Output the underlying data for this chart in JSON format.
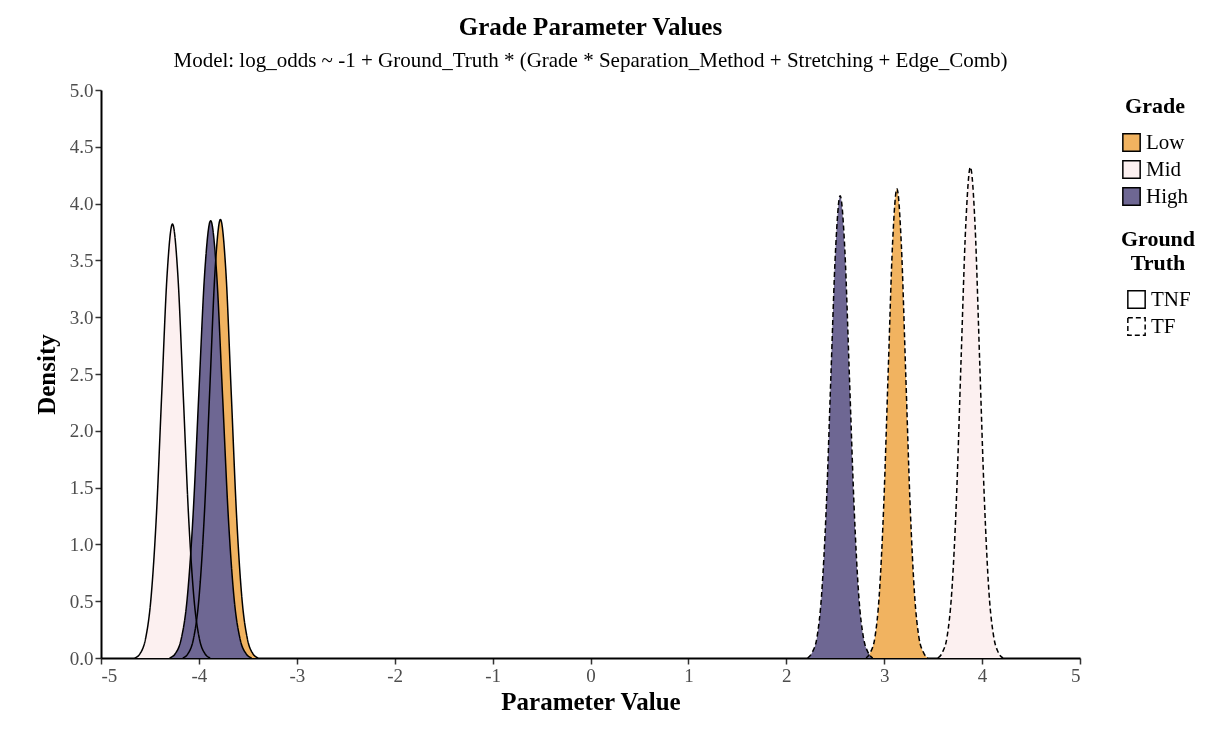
{
  "chart_data": {
    "type": "area",
    "title": "Grade Parameter Values",
    "subtitle": "Model: log_odds ~ -1 + Ground_Truth * (Grade * Separation_Method + Stretching + Edge_Comb)",
    "xlabel": "Parameter Value",
    "ylabel": "Density",
    "legend_title": [
      "Grade",
      "Ground Truth"
    ],
    "legend": "right",
    "grid": false,
    "xlim": [
      -5,
      5
    ],
    "xticks": [
      -5,
      -4,
      -3,
      -2,
      -1,
      0,
      1,
      2,
      3,
      4,
      5
    ],
    "ylim": [
      0,
      5
    ],
    "yticks": [
      {
        "value": 0,
        "label": "0.0"
      },
      {
        "value": 0.5,
        "label": "0.5"
      },
      {
        "value": 1,
        "label": "1.0"
      },
      {
        "value": 1.5,
        "label": "1.5"
      },
      {
        "value": 2,
        "label": "2.0"
      },
      {
        "value": 2.5,
        "label": "2.5"
      },
      {
        "value": 3,
        "label": "3.0"
      },
      {
        "value": 3.5,
        "label": "3.5"
      },
      {
        "value": 4,
        "label": "4.0"
      },
      {
        "value": 4.5,
        "label": "4.5"
      },
      {
        "value": 5,
        "label": "5.0"
      }
    ],
    "series": [
      {
        "name": "Low",
        "color": "#f1b360",
        "line_style": "solid",
        "x": [
          -4.165,
          -4.11,
          -4.055,
          -4.0,
          -3.945,
          -3.89,
          -3.835,
          -3.78,
          -3.725,
          -3.67,
          -3.615,
          -3.56,
          -3.505,
          -3.45,
          -3.395
        ],
        "values": [
          0,
          0.04,
          0.17,
          0.52,
          1.25,
          2.34,
          3.41,
          3.86,
          3.41,
          2.34,
          1.25,
          0.52,
          0.17,
          0.04,
          0
        ]
      },
      {
        "name": "Mid",
        "color": "#fcf0f0",
        "line_style": "solid",
        "x": [
          -4.655,
          -4.6,
          -4.545,
          -4.49,
          -4.435,
          -4.38,
          -4.325,
          -4.27,
          -4.215,
          -4.16,
          -4.105,
          -4.05,
          -3.995,
          -3.94,
          -3.885
        ],
        "values": [
          0,
          0.04,
          0.17,
          0.52,
          1.24,
          2.32,
          3.37,
          3.82,
          3.37,
          2.32,
          1.24,
          0.52,
          0.17,
          0.04,
          0
        ]
      },
      {
        "name": "High",
        "color": "#6e6793",
        "line_style": "solid",
        "x": [
          -4.3,
          -4.24,
          -4.18,
          -4.12,
          -4.06,
          -4.0,
          -3.94,
          -3.88,
          -3.82,
          -3.76,
          -3.7,
          -3.64,
          -3.58,
          -3.52,
          -3.46
        ],
        "values": [
          0,
          0.04,
          0.17,
          0.52,
          1.25,
          2.34,
          3.4,
          3.85,
          3.4,
          2.34,
          1.25,
          0.52,
          0.17,
          0.04,
          0
        ]
      },
      {
        "color": "#f1b360",
        "line_style": "dashed",
        "x": [
          2.815,
          2.86,
          2.905,
          2.95,
          2.995,
          3.04,
          3.085,
          3.13,
          3.175,
          3.22,
          3.265,
          3.31,
          3.355,
          3.4,
          3.445
        ],
        "values": [
          0,
          0.05,
          0.18,
          0.56,
          1.34,
          2.5,
          3.64,
          4.13,
          3.64,
          2.5,
          1.34,
          0.56,
          0.18,
          0.05,
          0
        ]
      },
      {
        "color": "#fcf0f0",
        "line_style": "dashed",
        "x": [
          3.548,
          3.595,
          3.643,
          3.69,
          3.738,
          3.785,
          3.833,
          3.88,
          3.928,
          3.975,
          4.023,
          4.07,
          4.118,
          4.165,
          4.213
        ],
        "values": [
          0,
          0.05,
          0.19,
          0.58,
          1.4,
          2.62,
          3.81,
          4.32,
          3.81,
          2.62,
          1.4,
          0.58,
          0.19,
          0.05,
          0
        ]
      },
      {
        "color": "#6e6793",
        "line_style": "dashed",
        "x": [
          2.218,
          2.265,
          2.313,
          2.36,
          2.408,
          2.455,
          2.503,
          2.55,
          2.598,
          2.645,
          2.693,
          2.74,
          2.788,
          2.835,
          2.883
        ],
        "values": [
          0,
          0.05,
          0.18,
          0.55,
          1.32,
          2.47,
          3.59,
          4.07,
          3.59,
          2.47,
          1.32,
          0.55,
          0.18,
          0.05,
          0
        ]
      },
      {
        "name": "TNF",
        "line_style": "solid"
      },
      {
        "name": "TF",
        "line_style": "dashed"
      }
    ]
  }
}
